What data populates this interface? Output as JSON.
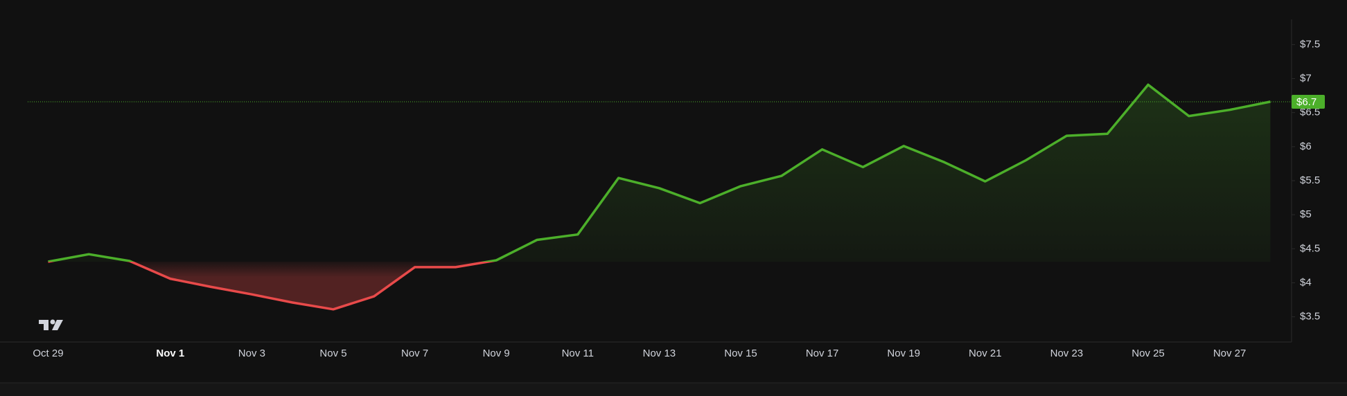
{
  "chart_data": {
    "type": "baseline",
    "categories": [
      "Oct 29",
      null,
      null,
      "Nov 1",
      null,
      "Nov 3",
      null,
      "Nov 5",
      null,
      "Nov 7",
      null,
      "Nov 9",
      null,
      "Nov 11",
      null,
      "Nov 13",
      null,
      "Nov 15",
      null,
      "Nov 17",
      null,
      "Nov 19",
      null,
      "Nov 21",
      null,
      "Nov 23",
      null,
      "Nov 25",
      null,
      "Nov 27",
      null
    ],
    "bold_categories": [
      "Nov 1"
    ],
    "values": [
      4.31,
      4.42,
      4.32,
      4.06,
      3.94,
      3.83,
      3.71,
      3.61,
      3.8,
      4.23,
      4.23,
      4.33,
      4.63,
      4.71,
      5.54,
      5.39,
      5.17,
      5.42,
      5.57,
      5.96,
      5.7,
      6.01,
      5.77,
      5.49,
      5.8,
      6.16,
      6.19,
      6.91,
      6.45,
      6.54,
      6.66
    ],
    "baseline": 4.31,
    "up_color": "#4caf2a",
    "down_color": "#e84a4a",
    "ylim": [
      3.13,
      7.88
    ],
    "yticks": [
      {
        "value": 3.5,
        "label": "$3.5"
      },
      {
        "value": 4,
        "label": "$4"
      },
      {
        "value": 4.5,
        "label": "$4.5"
      },
      {
        "value": 5,
        "label": "$5"
      },
      {
        "value": 5.5,
        "label": "$5.5"
      },
      {
        "value": 6,
        "label": "$6"
      },
      {
        "value": 6.5,
        "label": "$6.5"
      },
      {
        "value": 7,
        "label": "$7"
      },
      {
        "value": 7.5,
        "label": "$7.5"
      }
    ],
    "last_price": {
      "value": 6.66,
      "label": "$6.7"
    },
    "grid": false
  }
}
